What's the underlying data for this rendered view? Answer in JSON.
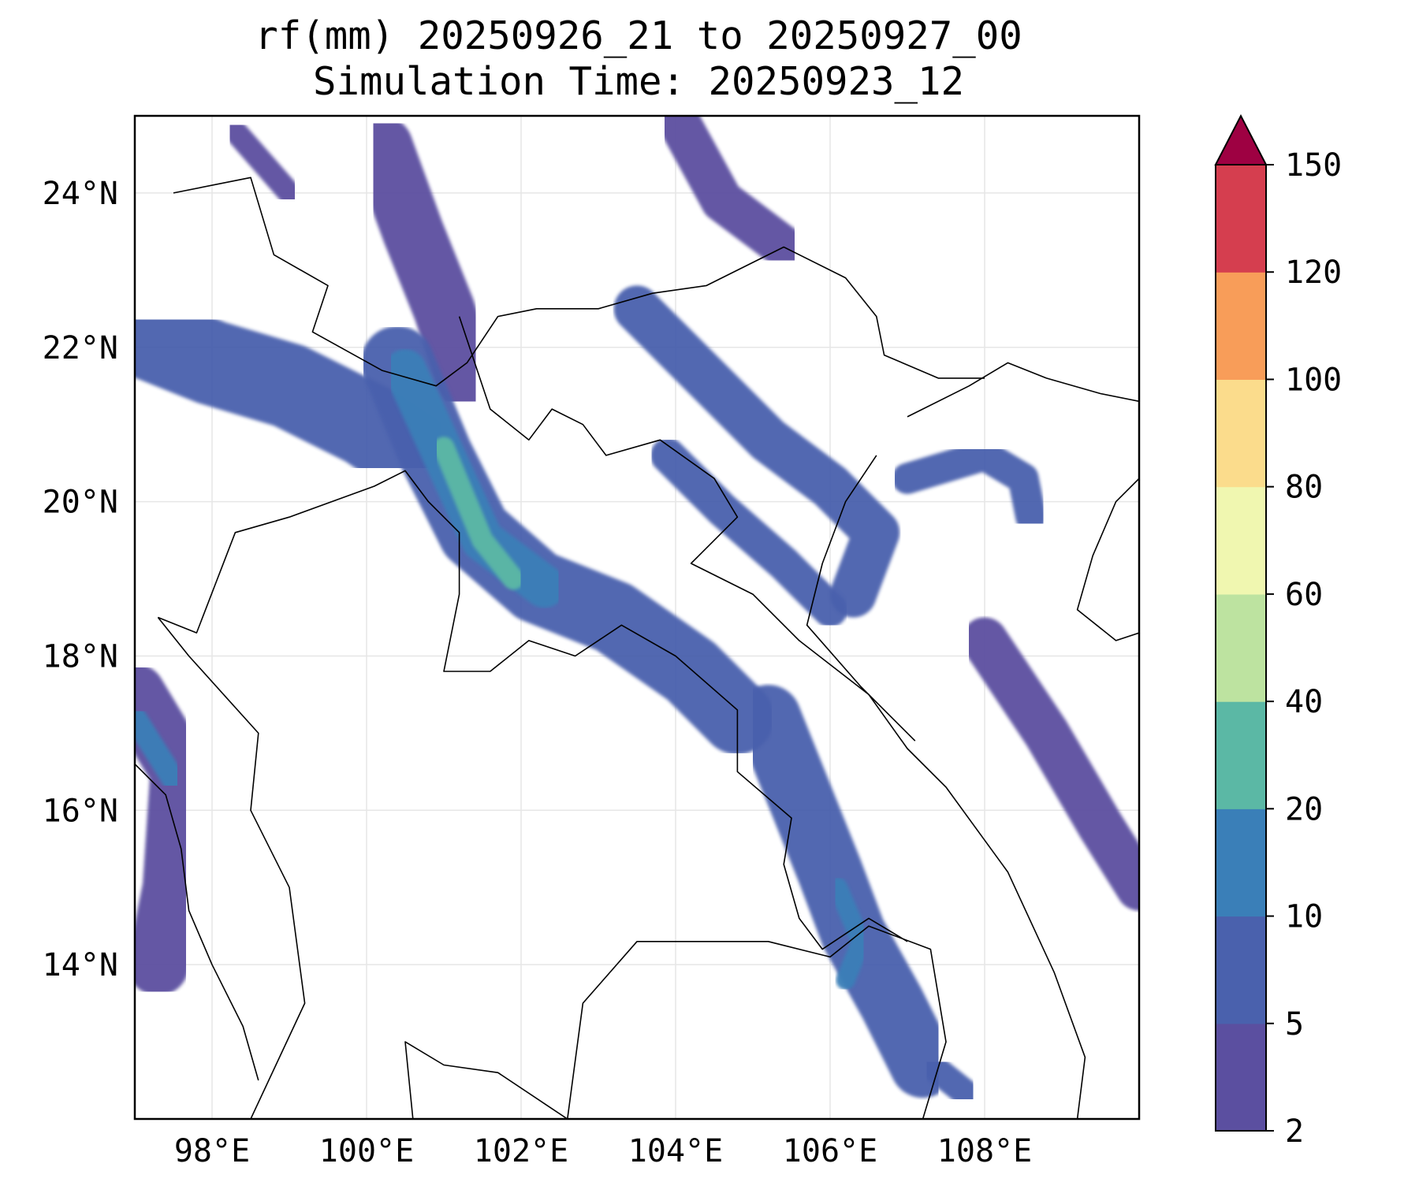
{
  "title": {
    "line1": "rf(mm) 20250926_21 to 20250927_00",
    "line2": "Simulation Time: 20250923_12"
  },
  "map": {
    "lon_range": [
      97,
      110
    ],
    "lat_range": [
      12,
      25
    ],
    "xticks": [
      {
        "lon": 98,
        "label": "98°E"
      },
      {
        "lon": 100,
        "label": "100°E"
      },
      {
        "lon": 102,
        "label": "102°E"
      },
      {
        "lon": 104,
        "label": "104°E"
      },
      {
        "lon": 106,
        "label": "106°E"
      },
      {
        "lon": 108,
        "label": "108°E"
      }
    ],
    "yticks": [
      {
        "lat": 24,
        "label": "24°N"
      },
      {
        "lat": 22,
        "label": "22°N"
      },
      {
        "lat": 20,
        "label": "20°N"
      },
      {
        "lat": 18,
        "label": "18°N"
      },
      {
        "lat": 16,
        "label": "16°N"
      },
      {
        "lat": 14,
        "label": "14°N"
      }
    ],
    "grid": true
  },
  "colorbar": {
    "levels": [
      "2",
      "5",
      "10",
      "20",
      "40",
      "60",
      "80",
      "100",
      "120",
      "150"
    ],
    "colors": [
      "#5b4fa0",
      "#4a61ad",
      "#3a7fb8",
      "#5bb8a5",
      "#bde3a0",
      "#f0f7b0",
      "#fbdc8c",
      "#f89d59",
      "#d53e4f"
    ],
    "extend_color": "#9e0142"
  },
  "rain_bands": [
    {
      "class": 1,
      "points": [
        [
          97.0,
          22.2
        ],
        [
          98.0,
          21.8
        ],
        [
          99.0,
          21.5
        ],
        [
          100.0,
          21.0
        ],
        [
          100.6,
          20.6
        ]
      ],
      "w": 1.1
    },
    {
      "class": 0,
      "points": [
        [
          100.2,
          24.6
        ],
        [
          100.6,
          23.5
        ],
        [
          101.0,
          22.5
        ],
        [
          101.3,
          21.6
        ]
      ],
      "w": 0.8
    },
    {
      "class": 1,
      "points": [
        [
          100.4,
          21.8
        ],
        [
          100.9,
          20.6
        ],
        [
          101.4,
          19.6
        ],
        [
          102.2,
          18.9
        ],
        [
          103.2,
          18.5
        ],
        [
          104.2,
          17.8
        ],
        [
          104.8,
          17.2
        ]
      ],
      "w": 0.95
    },
    {
      "class": 2,
      "points": [
        [
          100.5,
          21.7
        ],
        [
          101.0,
          20.6
        ],
        [
          101.5,
          19.5
        ],
        [
          102.3,
          18.9
        ]
      ],
      "w": 0.55
    },
    {
      "class": 3,
      "points": [
        [
          101.0,
          20.7
        ],
        [
          101.5,
          19.5
        ],
        [
          101.9,
          19.0
        ]
      ],
      "w": 0.28
    },
    {
      "class": 1,
      "points": [
        [
          103.5,
          22.5
        ],
        [
          104.5,
          21.5
        ],
        [
          105.2,
          20.8
        ],
        [
          106.0,
          20.2
        ],
        [
          106.6,
          19.6
        ],
        [
          106.3,
          18.8
        ]
      ],
      "w": 0.6
    },
    {
      "class": 1,
      "points": [
        [
          103.9,
          20.6
        ],
        [
          104.6,
          19.9
        ],
        [
          105.4,
          19.2
        ],
        [
          106.0,
          18.6
        ]
      ],
      "w": 0.45
    },
    {
      "class": 1,
      "points": [
        [
          105.2,
          17.2
        ],
        [
          105.6,
          16.2
        ],
        [
          106.0,
          15.2
        ],
        [
          106.3,
          14.4
        ],
        [
          106.8,
          13.5
        ],
        [
          107.2,
          12.7
        ]
      ],
      "w": 0.85
    },
    {
      "class": 2,
      "points": [
        [
          106.1,
          15.0
        ],
        [
          106.4,
          14.3
        ],
        [
          106.2,
          13.8
        ]
      ],
      "w": 0.25
    },
    {
      "class": 1,
      "points": [
        [
          107.3,
          12.7
        ],
        [
          107.8,
          12.3
        ]
      ],
      "w": 0.35
    },
    {
      "class": 1,
      "points": [
        [
          107.0,
          20.3
        ],
        [
          108.0,
          20.6
        ],
        [
          108.5,
          20.3
        ],
        [
          108.6,
          19.8
        ]
      ],
      "w": 0.4
    },
    {
      "class": 0,
      "points": [
        [
          108.0,
          18.2
        ],
        [
          108.8,
          17.0
        ],
        [
          109.5,
          15.8
        ],
        [
          110.0,
          15.0
        ]
      ],
      "w": 0.6
    },
    {
      "class": 0,
      "points": [
        [
          97.0,
          17.5
        ],
        [
          97.6,
          16.5
        ],
        [
          97.5,
          15.0
        ],
        [
          97.3,
          14.0
        ]
      ],
      "w": 0.8
    },
    {
      "class": 2,
      "points": [
        [
          97.0,
          17.2
        ],
        [
          97.5,
          16.4
        ]
      ],
      "w": 0.3
    },
    {
      "class": 0,
      "points": [
        [
          104.0,
          25.0
        ],
        [
          104.6,
          23.9
        ],
        [
          105.4,
          23.3
        ]
      ],
      "w": 0.55
    },
    {
      "class": 0,
      "points": [
        [
          98.3,
          24.8
        ],
        [
          99.0,
          24.0
        ]
      ],
      "w": 0.3
    }
  ],
  "borders": [
    [
      [
        97.5,
        24.0
      ],
      [
        98.5,
        24.2
      ],
      [
        98.8,
        23.2
      ],
      [
        99.5,
        22.8
      ],
      [
        99.3,
        22.2
      ],
      [
        100.2,
        21.7
      ],
      [
        100.9,
        21.5
      ],
      [
        101.3,
        21.8
      ],
      [
        101.7,
        22.4
      ],
      [
        102.2,
        22.5
      ],
      [
        103.0,
        22.5
      ],
      [
        103.7,
        22.7
      ],
      [
        104.4,
        22.8
      ],
      [
        105.4,
        23.3
      ],
      [
        106.2,
        22.9
      ],
      [
        106.6,
        22.4
      ],
      [
        106.7,
        21.9
      ],
      [
        107.4,
        21.6
      ],
      [
        108.0,
        21.6
      ]
    ],
    [
      [
        97.3,
        18.5
      ],
      [
        97.8,
        18.3
      ],
      [
        98.3,
        19.6
      ],
      [
        99.0,
        19.8
      ],
      [
        100.1,
        20.2
      ],
      [
        100.5,
        20.4
      ],
      [
        100.8,
        20.0
      ],
      [
        101.2,
        19.6
      ],
      [
        101.2,
        18.8
      ],
      [
        101.0,
        17.8
      ],
      [
        101.6,
        17.8
      ],
      [
        102.1,
        18.2
      ],
      [
        102.7,
        18.0
      ],
      [
        103.3,
        18.4
      ],
      [
        104.0,
        18.0
      ],
      [
        104.8,
        17.3
      ],
      [
        104.8,
        16.5
      ],
      [
        105.5,
        15.9
      ],
      [
        105.4,
        15.3
      ],
      [
        105.6,
        14.6
      ],
      [
        105.9,
        14.2
      ],
      [
        106.5,
        14.6
      ],
      [
        107.0,
        14.3
      ]
    ],
    [
      [
        98.5,
        12.0
      ],
      [
        99.2,
        13.5
      ],
      [
        99.0,
        15.0
      ],
      [
        98.5,
        16.0
      ],
      [
        98.6,
        17.0
      ],
      [
        97.7,
        18.0
      ],
      [
        97.3,
        18.5
      ]
    ],
    [
      [
        100.6,
        12.0
      ],
      [
        100.5,
        13.0
      ],
      [
        101.0,
        12.7
      ],
      [
        101.7,
        12.6
      ],
      [
        102.3,
        12.2
      ],
      [
        102.6,
        12.0
      ]
    ],
    [
      [
        102.6,
        12.0
      ],
      [
        102.8,
        13.5
      ],
      [
        103.5,
        14.3
      ],
      [
        104.5,
        14.3
      ],
      [
        105.2,
        14.3
      ],
      [
        106.0,
        14.1
      ],
      [
        106.5,
        14.5
      ],
      [
        107.3,
        14.2
      ],
      [
        107.5,
        13.0
      ],
      [
        107.2,
        12.0
      ]
    ],
    [
      [
        101.2,
        22.4
      ],
      [
        101.6,
        21.2
      ],
      [
        102.1,
        20.8
      ],
      [
        102.4,
        21.2
      ],
      [
        102.8,
        21.0
      ],
      [
        103.1,
        20.6
      ],
      [
        103.8,
        20.8
      ],
      [
        104.5,
        20.3
      ],
      [
        104.8,
        19.8
      ],
      [
        104.2,
        19.2
      ],
      [
        105.0,
        18.8
      ],
      [
        105.6,
        18.2
      ],
      [
        106.5,
        17.5
      ],
      [
        107.0,
        16.8
      ],
      [
        107.5,
        16.3
      ],
      [
        108.3,
        15.2
      ],
      [
        108.9,
        13.9
      ],
      [
        109.3,
        12.8
      ],
      [
        109.2,
        12.0
      ]
    ],
    [
      [
        106.6,
        20.6
      ],
      [
        106.2,
        20.0
      ],
      [
        105.9,
        19.2
      ],
      [
        105.7,
        18.4
      ],
      [
        106.4,
        17.6
      ],
      [
        107.1,
        16.9
      ]
    ],
    [
      [
        107.0,
        21.1
      ],
      [
        107.8,
        21.5
      ],
      [
        108.3,
        21.8
      ],
      [
        108.8,
        21.6
      ],
      [
        109.5,
        21.4
      ],
      [
        110.0,
        21.3
      ]
    ],
    [
      [
        110.0,
        20.3
      ],
      [
        109.7,
        20.0
      ],
      [
        109.4,
        19.3
      ],
      [
        109.2,
        18.6
      ],
      [
        109.7,
        18.2
      ],
      [
        110.0,
        18.3
      ]
    ],
    [
      [
        97.0,
        16.6
      ],
      [
        97.4,
        16.2
      ],
      [
        97.6,
        15.5
      ],
      [
        97.7,
        14.7
      ],
      [
        98.0,
        14.0
      ],
      [
        98.4,
        13.2
      ],
      [
        98.6,
        12.5
      ]
    ]
  ]
}
